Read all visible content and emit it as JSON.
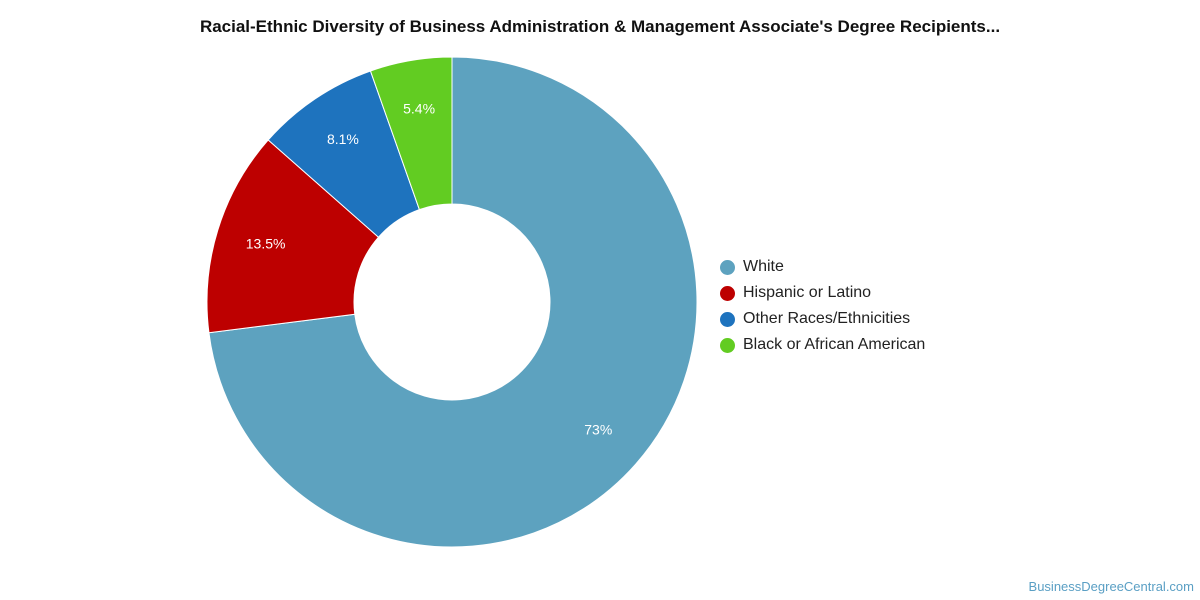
{
  "title": "Racial-Ethnic Diversity of Business Administration & Management Associate's Degree Recipients...",
  "watermark": "BusinessDegreeCentral.com",
  "chart_data": {
    "type": "pie",
    "style": "donut",
    "legend_position": "right",
    "slices": [
      {
        "name": "White",
        "value": 73,
        "label": "73%",
        "color": "#5da2bf"
      },
      {
        "name": "Hispanic or Latino",
        "value": 13.5,
        "label": "13.5%",
        "color": "#bd0000"
      },
      {
        "name": "Other Races/Ethnicities",
        "value": 8.1,
        "label": "8.1%",
        "color": "#1e73be"
      },
      {
        "name": "Black or African American",
        "value": 5.4,
        "label": "5.4%",
        "color": "#62cc22"
      }
    ]
  }
}
